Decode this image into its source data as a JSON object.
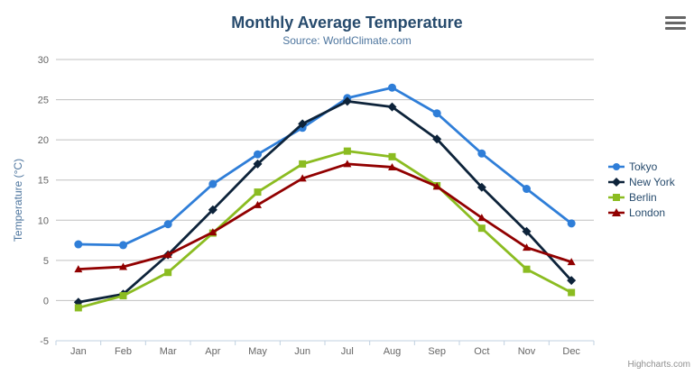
{
  "chart_data": {
    "type": "line",
    "title": "Monthly Average Temperature",
    "subtitle": "Source: WorldClimate.com",
    "xlabel": "",
    "ylabel": "Temperature (°C)",
    "categories": [
      "Jan",
      "Feb",
      "Mar",
      "Apr",
      "May",
      "Jun",
      "Jul",
      "Aug",
      "Sep",
      "Oct",
      "Nov",
      "Dec"
    ],
    "ylim": [
      -5,
      30
    ],
    "ytick_interval": 5,
    "grid": true,
    "legend_position": "right",
    "series": [
      {
        "name": "Tokyo",
        "color": "#2f7ed8",
        "marker": "circle",
        "values": [
          7.0,
          6.9,
          9.5,
          14.5,
          18.2,
          21.5,
          25.2,
          26.5,
          23.3,
          18.3,
          13.9,
          9.6
        ]
      },
      {
        "name": "New York",
        "color": "#0d233a",
        "marker": "diamond",
        "values": [
          -0.2,
          0.8,
          5.7,
          11.3,
          17.0,
          22.0,
          24.8,
          24.1,
          20.1,
          14.1,
          8.6,
          2.5
        ]
      },
      {
        "name": "Berlin",
        "color": "#8bbc21",
        "marker": "square",
        "values": [
          -0.9,
          0.6,
          3.5,
          8.4,
          13.5,
          17.0,
          18.6,
          17.9,
          14.3,
          9.0,
          3.9,
          1.0
        ]
      },
      {
        "name": "London",
        "color": "#910000",
        "marker": "triangle",
        "values": [
          3.9,
          4.2,
          5.7,
          8.5,
          11.9,
          15.2,
          17.0,
          16.6,
          14.2,
          10.3,
          6.6,
          4.8
        ]
      }
    ],
    "credits": "Highcharts.com"
  },
  "colors": {
    "title": "#274b6d",
    "subtitle": "#4d759e",
    "axis_title": "#4d759e",
    "axis_labels": "#666666",
    "gridline": "#c0c0c0",
    "axis_line": "#c0d0e0",
    "legend_text": "#274b6d",
    "credits": "#909090",
    "background": "#ffffff",
    "burger_icon": "#666666"
  }
}
